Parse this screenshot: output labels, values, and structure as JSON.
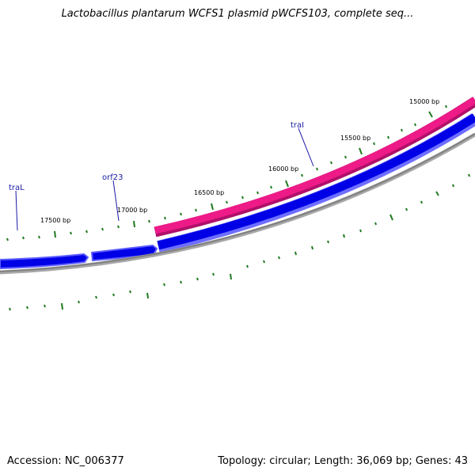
{
  "title": "Lactobacillus plantarum WCFS1 plasmid pWCFS103, complete seq...",
  "footer": {
    "accession": "Accession: NC_006377",
    "summary": "Topology: circular; Length: 36,069 bp; Genes: 43"
  },
  "map": {
    "backbone_color": "#808080",
    "tick_color": "#1f7a1f",
    "forward_gene_color": "#0000e6",
    "reverse_gene_color": "#ee1a88",
    "tick_labels": [
      "15000 bp",
      "15500 bp",
      "16000 bp",
      "16500 bp",
      "17000 bp",
      "17500 bp"
    ],
    "genes": [
      {
        "name": "traI",
        "strand": "reverse"
      },
      {
        "name": "orf23",
        "strand": "forward"
      },
      {
        "name": "traL",
        "strand": "forward"
      }
    ]
  }
}
